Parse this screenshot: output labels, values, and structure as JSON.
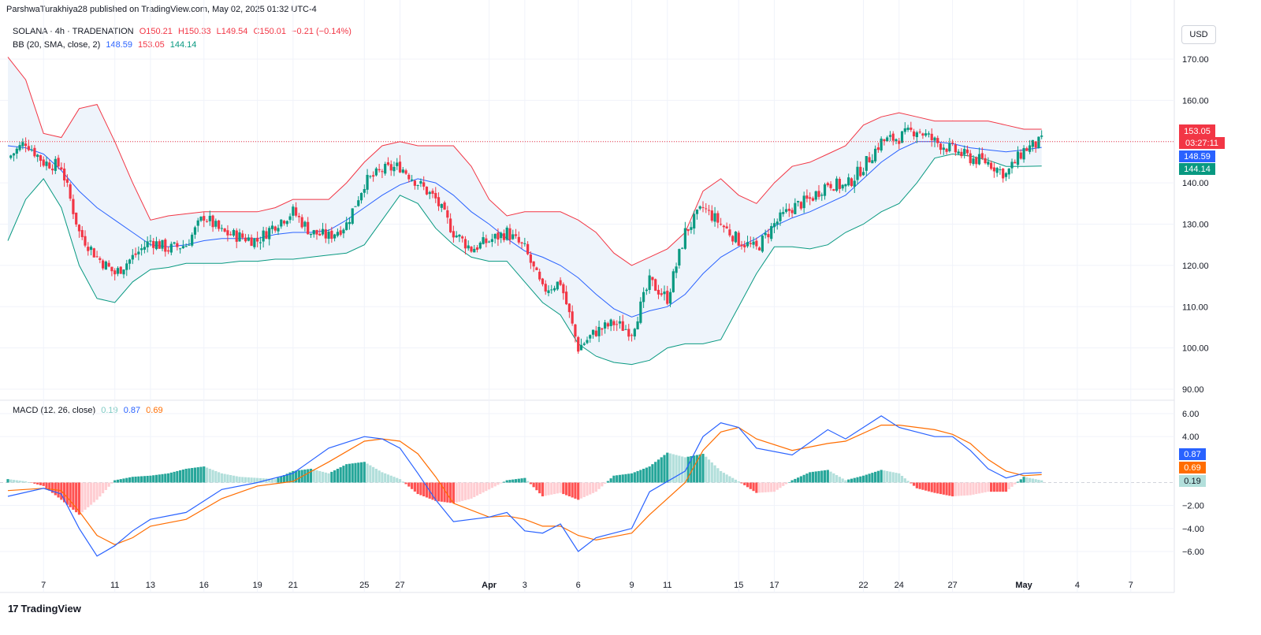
{
  "header": {
    "publisher_line": "ParshwaTurakhiya28 published on TradingView.com, May 02, 2025 01:32 UTC-4"
  },
  "legend": {
    "symbol": "SOLANA · 4h · TRADENATION",
    "open": "O150.21",
    "high": "H150.33",
    "low": "L149.54",
    "close": "C150.01",
    "change": "−0.21 (−0.14%)",
    "bb_label": "BB (20, SMA, close, 2)",
    "bb_basis": "148.59",
    "bb_upper": "153.05",
    "bb_lower": "144.14",
    "macd_label": "MACD (12, 26, close)",
    "macd_hist": "0.19",
    "macd_line": "0.87",
    "macd_signal": "0.69"
  },
  "currency_button": "USD",
  "price_badges": {
    "upper": "153.05",
    "countdown": "03:27:11",
    "basis": "148.59",
    "lower": "144.14"
  },
  "macd_badges": {
    "macd": "0.87",
    "signal": "0.69",
    "hist": "0.19"
  },
  "colors": {
    "up": "#089981",
    "down": "#f23645",
    "upper_band": "#f23645",
    "basis": "#2962ff",
    "lower_band": "#089981",
    "band_fill": "#eef4fb",
    "macd_line": "#2962ff",
    "signal_line": "#ff6d00",
    "hist_up_strong": "#26a69a",
    "hist_up_weak": "#b2dfdb",
    "hist_down_strong": "#ff5252",
    "hist_down_weak": "#ffcdd2"
  },
  "footer": {
    "brand": "TradingView"
  },
  "chart_data": [
    {
      "type": "candlestick",
      "title": "SOLANA · 4h · TRADENATION",
      "ylim": [
        90,
        170
      ],
      "y_ticks": [
        "170.00",
        "160.00",
        "150.00",
        "140.00",
        "130.00",
        "120.00",
        "110.00",
        "100.00",
        "90.00"
      ],
      "x_ticks": [
        "7",
        "11",
        "13",
        "16",
        "19",
        "21",
        "25",
        "27",
        "Apr",
        "3",
        "6",
        "9",
        "11",
        "15",
        "17",
        "22",
        "24",
        "27",
        "May",
        "4",
        "7"
      ],
      "x_tick_dates": [
        "2025-03-07",
        "2025-03-11",
        "2025-03-13",
        "2025-03-16",
        "2025-03-19",
        "2025-03-21",
        "2025-03-25",
        "2025-03-27",
        "2025-04-01",
        "2025-04-03",
        "2025-04-06",
        "2025-04-09",
        "2025-04-11",
        "2025-04-15",
        "2025-04-17",
        "2025-04-22",
        "2025-04-24",
        "2025-04-27",
        "2025-05-01",
        "2025-05-04",
        "2025-05-07"
      ],
      "x_range": [
        "2025-03-05",
        "2025-05-09"
      ],
      "last_price": 150.01,
      "close_path": {
        "x": [
          "2025-03-05",
          "2025-03-06",
          "2025-03-07",
          "2025-03-08",
          "2025-03-09",
          "2025-03-10",
          "2025-03-11",
          "2025-03-12",
          "2025-03-13",
          "2025-03-14",
          "2025-03-15",
          "2025-03-16",
          "2025-03-17",
          "2025-03-18",
          "2025-03-19",
          "2025-03-20",
          "2025-03-21",
          "2025-03-22",
          "2025-03-23",
          "2025-03-24",
          "2025-03-25",
          "2025-03-26",
          "2025-03-27",
          "2025-03-28",
          "2025-03-29",
          "2025-03-30",
          "2025-03-31",
          "2025-04-01",
          "2025-04-02",
          "2025-04-03",
          "2025-04-04",
          "2025-04-05",
          "2025-04-06",
          "2025-04-07",
          "2025-04-08",
          "2025-04-09",
          "2025-04-10",
          "2025-04-11",
          "2025-04-12",
          "2025-04-13",
          "2025-04-14",
          "2025-04-15",
          "2025-04-16",
          "2025-04-17",
          "2025-04-18",
          "2025-04-19",
          "2025-04-20",
          "2025-04-21",
          "2025-04-22",
          "2025-04-23",
          "2025-04-24",
          "2025-04-25",
          "2025-04-26",
          "2025-04-27",
          "2025-04-28",
          "2025-04-29",
          "2025-04-30",
          "2025-05-01",
          "2025-05-02"
        ],
        "y": [
          146,
          150,
          145,
          144,
          128,
          122,
          118,
          122,
          126,
          124,
          125,
          132,
          128,
          127,
          126,
          130,
          133,
          128,
          127,
          130,
          140,
          143,
          144,
          140,
          136,
          128,
          124,
          126,
          128,
          124,
          114,
          116,
          100,
          104,
          106,
          104,
          116,
          112,
          128,
          134,
          130,
          126,
          124,
          130,
          134,
          136,
          140,
          139,
          144,
          150,
          151,
          153,
          150,
          148,
          146,
          145,
          142,
          148,
          150
        ]
      },
      "series": [
        {
          "name": "BB upper",
          "x": [
            "2025-03-05",
            "2025-03-06",
            "2025-03-07",
            "2025-03-08",
            "2025-03-09",
            "2025-03-10",
            "2025-03-11",
            "2025-03-12",
            "2025-03-13",
            "2025-03-14",
            "2025-03-15",
            "2025-03-16",
            "2025-03-17",
            "2025-03-18",
            "2025-03-19",
            "2025-03-20",
            "2025-03-21",
            "2025-03-22",
            "2025-03-23",
            "2025-03-24",
            "2025-03-25",
            "2025-03-26",
            "2025-03-27",
            "2025-03-28",
            "2025-03-29",
            "2025-03-30",
            "2025-03-31",
            "2025-04-01",
            "2025-04-02",
            "2025-04-03",
            "2025-04-04",
            "2025-04-05",
            "2025-04-06",
            "2025-04-07",
            "2025-04-08",
            "2025-04-09",
            "2025-04-10",
            "2025-04-11",
            "2025-04-12",
            "2025-04-13",
            "2025-04-14",
            "2025-04-15",
            "2025-04-16",
            "2025-04-17",
            "2025-04-18",
            "2025-04-19",
            "2025-04-20",
            "2025-04-21",
            "2025-04-22",
            "2025-04-23",
            "2025-04-24",
            "2025-04-25",
            "2025-04-26",
            "2025-04-27",
            "2025-04-28",
            "2025-04-29",
            "2025-04-30",
            "2025-05-01",
            "2025-05-02"
          ],
          "y": [
            170.5,
            165,
            152,
            151,
            158,
            159,
            150,
            140,
            131,
            132,
            132.5,
            133,
            133,
            133,
            133,
            134,
            136,
            136,
            136,
            140,
            145,
            149,
            150,
            149,
            149,
            149,
            144,
            136,
            132,
            133,
            133,
            133,
            131,
            128,
            123,
            120,
            122,
            124,
            128,
            138,
            141,
            137,
            135,
            140,
            144,
            145,
            147,
            149,
            154,
            156,
            157,
            156,
            155,
            155,
            155,
            155,
            154,
            153,
            153
          ]
        },
        {
          "name": "BB basis",
          "x": [
            "2025-03-05",
            "2025-03-06",
            "2025-03-07",
            "2025-03-08",
            "2025-03-09",
            "2025-03-10",
            "2025-03-11",
            "2025-03-12",
            "2025-03-13",
            "2025-03-14",
            "2025-03-15",
            "2025-03-16",
            "2025-03-17",
            "2025-03-18",
            "2025-03-19",
            "2025-03-20",
            "2025-03-21",
            "2025-03-22",
            "2025-03-23",
            "2025-03-24",
            "2025-03-25",
            "2025-03-26",
            "2025-03-27",
            "2025-03-28",
            "2025-03-29",
            "2025-03-30",
            "2025-03-31",
            "2025-04-01",
            "2025-04-02",
            "2025-04-03",
            "2025-04-04",
            "2025-04-05",
            "2025-04-06",
            "2025-04-07",
            "2025-04-08",
            "2025-04-09",
            "2025-04-10",
            "2025-04-11",
            "2025-04-12",
            "2025-04-13",
            "2025-04-14",
            "2025-04-15",
            "2025-04-16",
            "2025-04-17",
            "2025-04-18",
            "2025-04-19",
            "2025-04-20",
            "2025-04-21",
            "2025-04-22",
            "2025-04-23",
            "2025-04-24",
            "2025-04-25",
            "2025-04-26",
            "2025-04-27",
            "2025-04-28",
            "2025-04-29",
            "2025-04-30",
            "2025-05-01",
            "2025-05-02"
          ],
          "y": [
            149,
            148.5,
            147,
            143,
            138,
            134,
            131,
            128,
            125,
            124.5,
            125,
            126,
            126.5,
            126.5,
            126.5,
            127.5,
            128,
            128,
            128.5,
            131,
            134,
            137,
            139.5,
            141,
            140,
            137,
            133,
            130,
            126.5,
            123.5,
            122,
            120,
            117,
            113,
            109.5,
            107.5,
            109,
            110,
            113,
            118,
            122,
            124.5,
            126.5,
            129.5,
            131.5,
            133,
            135,
            137,
            141,
            145,
            148,
            150,
            150,
            149.5,
            148.5,
            148,
            147.5,
            148,
            148.6
          ]
        },
        {
          "name": "BB lower",
          "x": [
            "2025-03-05",
            "2025-03-06",
            "2025-03-07",
            "2025-03-08",
            "2025-03-09",
            "2025-03-10",
            "2025-03-11",
            "2025-03-12",
            "2025-03-13",
            "2025-03-14",
            "2025-03-15",
            "2025-03-16",
            "2025-03-17",
            "2025-03-18",
            "2025-03-19",
            "2025-03-20",
            "2025-03-21",
            "2025-03-22",
            "2025-03-23",
            "2025-03-24",
            "2025-03-25",
            "2025-03-26",
            "2025-03-27",
            "2025-03-28",
            "2025-03-29",
            "2025-03-30",
            "2025-03-31",
            "2025-04-01",
            "2025-04-02",
            "2025-04-03",
            "2025-04-04",
            "2025-04-05",
            "2025-04-06",
            "2025-04-07",
            "2025-04-08",
            "2025-04-09",
            "2025-04-10",
            "2025-04-11",
            "2025-04-12",
            "2025-04-13",
            "2025-04-14",
            "2025-04-15",
            "2025-04-16",
            "2025-04-17",
            "2025-04-18",
            "2025-04-19",
            "2025-04-20",
            "2025-04-21",
            "2025-04-22",
            "2025-04-23",
            "2025-04-24",
            "2025-04-25",
            "2025-04-26",
            "2025-04-27",
            "2025-04-28",
            "2025-04-29",
            "2025-04-30",
            "2025-05-01",
            "2025-05-02"
          ],
          "y": [
            126,
            136,
            141,
            134,
            120,
            112,
            111,
            116,
            119,
            119.5,
            120.5,
            120.5,
            120.5,
            121,
            121,
            121.5,
            121.5,
            122,
            122.5,
            123,
            125,
            131,
            137,
            135,
            129,
            125,
            122,
            121,
            121,
            116,
            111,
            108,
            101,
            98,
            96.5,
            96,
            97,
            100,
            101,
            101,
            102,
            110,
            118,
            124.5,
            124.5,
            124,
            125,
            128,
            130,
            133,
            135,
            140,
            146,
            147,
            146.5,
            145.5,
            144,
            144,
            144.1
          ]
        }
      ]
    },
    {
      "type": "line",
      "title": "MACD (12, 26, close)",
      "ylim": [
        -7,
        7
      ],
      "y_ticks": [
        "6.00",
        "4.00",
        "−2.00",
        "−4.00",
        "−6.00"
      ],
      "series": [
        {
          "name": "MACD",
          "x": [
            "2025-03-05",
            "2025-03-07",
            "2025-03-08",
            "2025-03-09",
            "2025-03-10",
            "2025-03-11",
            "2025-03-12",
            "2025-03-13",
            "2025-03-15",
            "2025-03-17",
            "2025-03-19",
            "2025-03-21",
            "2025-03-23",
            "2025-03-25",
            "2025-03-26",
            "2025-03-27",
            "2025-03-28",
            "2025-03-29",
            "2025-03-30",
            "2025-04-01",
            "2025-04-02",
            "2025-04-03",
            "2025-04-04",
            "2025-04-05",
            "2025-04-06",
            "2025-04-07",
            "2025-04-09",
            "2025-04-10",
            "2025-04-12",
            "2025-04-13",
            "2025-04-14",
            "2025-04-15",
            "2025-04-16",
            "2025-04-18",
            "2025-04-20",
            "2025-04-21",
            "2025-04-23",
            "2025-04-24",
            "2025-04-26",
            "2025-04-27",
            "2025-04-28",
            "2025-04-29",
            "2025-04-30",
            "2025-05-01",
            "2025-05-02"
          ],
          "y": [
            -1.2,
            -0.5,
            -1.0,
            -4.0,
            -6.4,
            -5.5,
            -4.2,
            -3.2,
            -2.6,
            -0.6,
            0.0,
            0.8,
            3.0,
            4.0,
            3.8,
            3.0,
            0.8,
            -1.5,
            -3.4,
            -3.0,
            -2.6,
            -4.2,
            -4.4,
            -3.6,
            -6.0,
            -4.8,
            -4.0,
            -0.8,
            1.0,
            4.0,
            5.2,
            4.8,
            3.0,
            2.4,
            4.6,
            3.8,
            5.8,
            4.8,
            4.0,
            4.0,
            2.8,
            1.2,
            0.4,
            0.8,
            0.87
          ]
        },
        {
          "name": "Signal",
          "x": [
            "2025-03-05",
            "2025-03-07",
            "2025-03-08",
            "2025-03-09",
            "2025-03-10",
            "2025-03-11",
            "2025-03-12",
            "2025-03-13",
            "2025-03-15",
            "2025-03-17",
            "2025-03-19",
            "2025-03-21",
            "2025-03-23",
            "2025-03-25",
            "2025-03-26",
            "2025-03-27",
            "2025-03-28",
            "2025-03-29",
            "2025-03-30",
            "2025-04-01",
            "2025-04-02",
            "2025-04-03",
            "2025-04-04",
            "2025-04-05",
            "2025-04-06",
            "2025-04-07",
            "2025-04-09",
            "2025-04-10",
            "2025-04-12",
            "2025-04-13",
            "2025-04-14",
            "2025-04-15",
            "2025-04-16",
            "2025-04-18",
            "2025-04-20",
            "2025-04-21",
            "2025-04-23",
            "2025-04-24",
            "2025-04-26",
            "2025-04-27",
            "2025-04-28",
            "2025-04-29",
            "2025-04-30",
            "2025-05-01",
            "2025-05-02"
          ],
          "y": [
            -0.7,
            -0.5,
            -0.7,
            -2.5,
            -4.6,
            -5.4,
            -4.8,
            -3.8,
            -3.2,
            -1.4,
            -0.3,
            0.1,
            1.8,
            3.6,
            3.8,
            3.6,
            2.5,
            0.5,
            -1.8,
            -3.0,
            -2.9,
            -3.2,
            -3.8,
            -3.8,
            -4.6,
            -5.0,
            -4.4,
            -2.8,
            0.0,
            2.8,
            4.4,
            4.8,
            3.8,
            2.8,
            3.4,
            3.6,
            5.0,
            5.0,
            4.6,
            4.2,
            3.4,
            2.0,
            1.0,
            0.6,
            0.69
          ]
        },
        {
          "name": "Histogram",
          "type": "bar",
          "x": [
            "2025-03-05",
            "2025-03-06",
            "2025-03-07",
            "2025-03-08",
            "2025-03-09",
            "2025-03-10",
            "2025-03-11",
            "2025-03-12",
            "2025-03-13",
            "2025-03-14",
            "2025-03-15",
            "2025-03-16",
            "2025-03-17",
            "2025-03-18",
            "2025-03-19",
            "2025-03-20",
            "2025-03-21",
            "2025-03-22",
            "2025-03-23",
            "2025-03-24",
            "2025-03-25",
            "2025-03-26",
            "2025-03-27",
            "2025-03-28",
            "2025-03-29",
            "2025-03-30",
            "2025-03-31",
            "2025-04-01",
            "2025-04-02",
            "2025-04-03",
            "2025-04-04",
            "2025-04-05",
            "2025-04-06",
            "2025-04-07",
            "2025-04-08",
            "2025-04-09",
            "2025-04-10",
            "2025-04-11",
            "2025-04-12",
            "2025-04-13",
            "2025-04-14",
            "2025-04-15",
            "2025-04-16",
            "2025-04-17",
            "2025-04-18",
            "2025-04-19",
            "2025-04-20",
            "2025-04-21",
            "2025-04-22",
            "2025-04-23",
            "2025-04-24",
            "2025-04-25",
            "2025-04-26",
            "2025-04-27",
            "2025-04-28",
            "2025-04-29",
            "2025-04-30",
            "2025-05-01",
            "2025-05-02"
          ],
          "y": [
            0.3,
            0.1,
            -0.3,
            -1.5,
            -2.8,
            -1.5,
            0.2,
            0.5,
            0.6,
            0.8,
            1.2,
            1.4,
            0.8,
            0.5,
            0.4,
            0.3,
            1.0,
            1.2,
            0.8,
            1.6,
            1.8,
            0.9,
            0.3,
            -1.0,
            -1.6,
            -1.8,
            -1.4,
            -0.6,
            0.2,
            0.4,
            -1.2,
            -0.9,
            -1.5,
            -0.8,
            0.6,
            0.8,
            1.4,
            2.6,
            2.2,
            2.5,
            1.0,
            0.1,
            -0.9,
            -0.8,
            0.2,
            0.9,
            1.1,
            0.2,
            0.6,
            1.1,
            0.8,
            -0.5,
            -0.9,
            -1.2,
            -1.1,
            -0.8,
            -0.8,
            0.5,
            0.19
          ]
        }
      ]
    }
  ]
}
